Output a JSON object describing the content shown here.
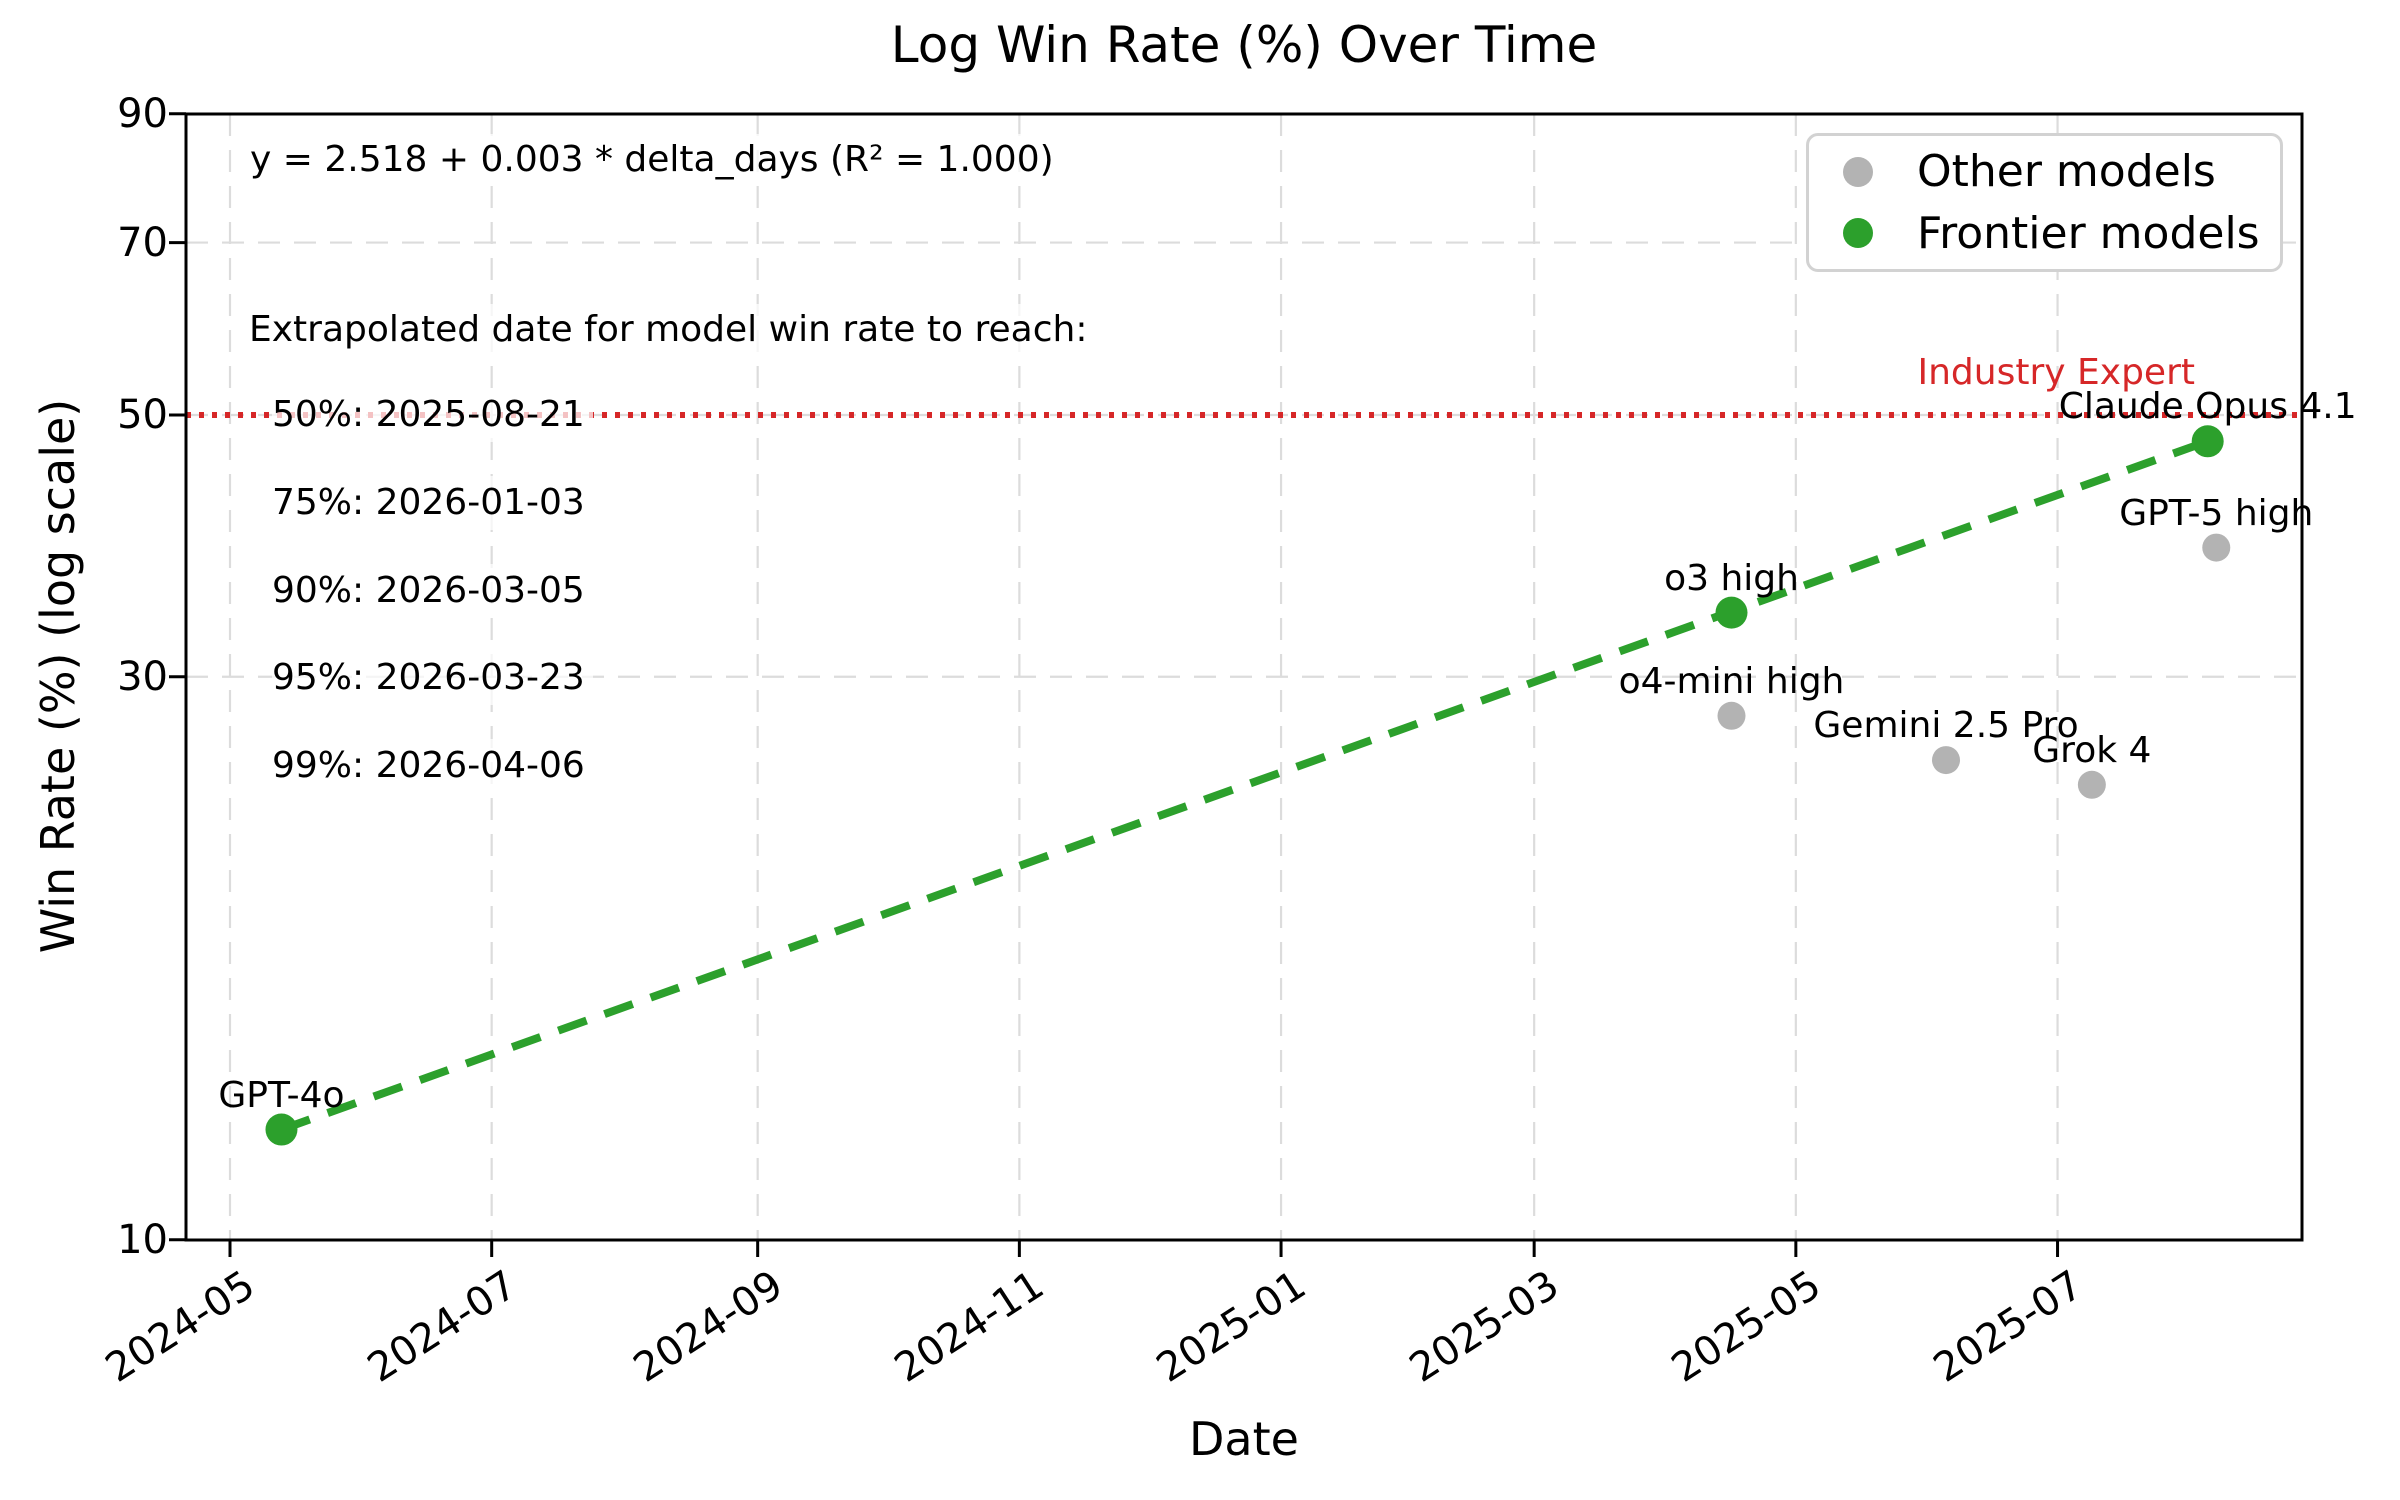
{
  "title": "Log Win Rate (%) Over Time",
  "axes": {
    "xlabel": "Date",
    "ylabel": "Win Rate (%) (log scale)",
    "x_tick_labels": [
      "2024-05",
      "2024-07",
      "2024-09",
      "2024-11",
      "2025-01",
      "2025-03",
      "2025-05",
      "2025-07"
    ],
    "y_tick_labels": [
      "10",
      "30",
      "50",
      "70",
      "90"
    ],
    "y_tick_values": [
      10,
      30,
      50,
      70,
      90
    ],
    "y_scale": "log",
    "grid": true
  },
  "annotations": {
    "fit_equation": "y = 2.518 + 0.003 * delta_days (R² = 1.000)",
    "extrapolation_header": "Extrapolated date for model win rate to reach:",
    "extrapolation_entries": [
      {
        "percent": "50%",
        "date": "2025-08-21"
      },
      {
        "percent": "75%",
        "date": "2026-01-03"
      },
      {
        "percent": "90%",
        "date": "2026-03-05"
      },
      {
        "percent": "95%",
        "date": "2026-03-23"
      },
      {
        "percent": "99%",
        "date": "2026-04-06"
      }
    ],
    "threshold_label": "Industry Expert",
    "threshold_value": 50
  },
  "legend": {
    "position": "upper right",
    "items": [
      {
        "label": "Other models",
        "color": "#b3b3b3"
      },
      {
        "label": "Frontier models",
        "color": "#2ca02c"
      }
    ]
  },
  "colors": {
    "frontier": "#2ca02c",
    "other": "#b3b3b3",
    "threshold": "#d62728",
    "grid": "#dcdcdc",
    "spine": "#000000"
  },
  "chart_data": {
    "type": "scatter",
    "x_range": [
      "2024-04-20",
      "2025-08-27"
    ],
    "ylim": [
      10,
      90
    ],
    "points": [
      {
        "model": "GPT-4o",
        "date": "2024-05-13",
        "win_rate": 12.4,
        "frontier": true
      },
      {
        "model": "o3 high",
        "date": "2025-04-16",
        "win_rate": 34.0,
        "frontier": true
      },
      {
        "model": "o4-mini high",
        "date": "2025-04-16",
        "win_rate": 27.8,
        "frontier": false
      },
      {
        "model": "Gemini 2.5 Pro",
        "date": "2025-06-05",
        "win_rate": 25.5,
        "frontier": false
      },
      {
        "model": "Grok 4",
        "date": "2025-07-09",
        "win_rate": 24.3,
        "frontier": false
      },
      {
        "model": "GPT-5 high",
        "date": "2025-08-07",
        "win_rate": 38.6,
        "frontier": false
      },
      {
        "model": "Claude Opus 4.1",
        "date": "2025-08-05",
        "win_rate": 47.5,
        "frontier": true
      }
    ],
    "trend_line": {
      "from": "GPT-4o",
      "to": "Claude Opus 4.1",
      "style": "dashed",
      "color": "#2ca02c"
    },
    "threshold_line": {
      "value": 50,
      "style": "dotted",
      "color": "#d62728",
      "label": "Industry Expert"
    }
  }
}
